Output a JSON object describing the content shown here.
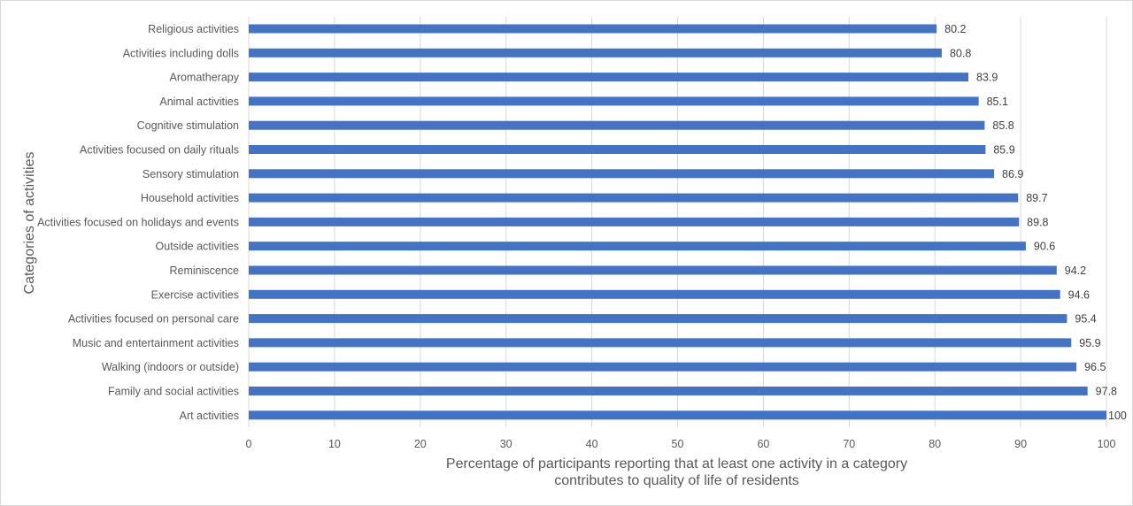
{
  "chart_data": {
    "type": "bar",
    "orientation": "horizontal",
    "categories": [
      "Religious activities",
      "Activities including dolls",
      "Aromatherapy",
      "Animal activities",
      "Cognitive stimulation",
      "Activities focused on daily rituals",
      "Sensory stimulation",
      "Household activities",
      "Activities focused on holidays and events",
      "Outside activities",
      "Reminiscence",
      "Exercise activities",
      "Activities focused on personal care",
      "Music and entertainment activities",
      "Walking (indoors or outside)",
      "Family and social activities",
      "Art activities"
    ],
    "values": [
      80.2,
      80.8,
      83.9,
      85.1,
      85.8,
      85.9,
      86.9,
      89.7,
      89.8,
      90.6,
      94.2,
      94.6,
      95.4,
      95.9,
      96.5,
      97.8,
      100
    ],
    "value_labels": [
      "80.2",
      "80.8",
      "83.9",
      "85.1",
      "85.8",
      "85.9",
      "86.9",
      "89.7",
      "89.8",
      "90.6",
      "94.2",
      "94.6",
      "95.4",
      "95.9",
      "96.5",
      "97.8",
      "100"
    ],
    "xlabel_lines": [
      "Percentage of participants reporting that at least one activity in a category",
      "contributes to quality of life of residents"
    ],
    "ylabel": "Categories of activities",
    "xlim": [
      0,
      100
    ],
    "xticks": [
      0,
      10,
      20,
      30,
      40,
      50,
      60,
      70,
      80,
      90,
      100
    ],
    "xtick_labels": [
      "0",
      "10",
      "20",
      "30",
      "40",
      "50",
      "60",
      "70",
      "80",
      "90",
      "100"
    ],
    "grid": true,
    "legend": "none",
    "bar_color": "#4472c4"
  }
}
